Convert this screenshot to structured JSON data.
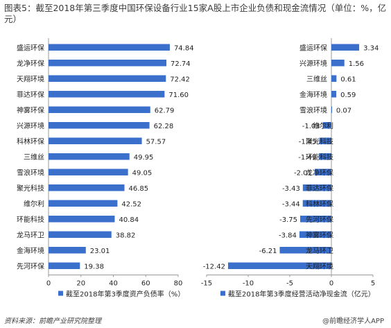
{
  "title": "图表5：截至2018年第三季度中国环保设备行业15家A股上市企业负债和现金流情况（单位：%，亿元）",
  "source": "资料来源：前瞻产业研究院整理",
  "brand": "@前瞻经济学人APP",
  "colors": {
    "bar": "#3a6fcb",
    "axis": "#999999",
    "text": "#222222"
  },
  "chart_data": [
    {
      "type": "bar",
      "orientation": "horizontal",
      "categories": [
        "盛运环保",
        "龙净环保",
        "天翔环境",
        "菲达环保",
        "神雾环保",
        "兴源环境",
        "科林环保",
        "三维丝",
        "雪浪环境",
        "聚光科技",
        "维尔利",
        "环能科技",
        "龙马环卫",
        "金海环境",
        "先河环保"
      ],
      "series": [
        {
          "name": "截至2018年第3季度资产负债率（%）",
          "values": [
            74.84,
            72.74,
            72.42,
            71.6,
            62.79,
            62.28,
            57.57,
            49.95,
            49.05,
            46.85,
            42.52,
            40.84,
            38.82,
            23.01,
            19.38
          ]
        }
      ],
      "data_labels": [
        "74.84",
        "72.74",
        "72.42",
        "71.60",
        "62.79",
        "62.28",
        "57.57",
        "49.95",
        "49.05",
        "46.85",
        "42.52",
        "40.84",
        "38.82",
        "23.01",
        "19.38"
      ],
      "xlim": [
        0,
        80
      ],
      "xticks": [
        0,
        20,
        40,
        60,
        80
      ],
      "legend": "bottom"
    },
    {
      "type": "bar",
      "orientation": "horizontal",
      "categories": [
        "盛运环保",
        "兴源环境",
        "三维丝",
        "金海环境",
        "雪浪环境",
        "维尔利",
        "聚光科技",
        "环能科技",
        "龙净环保",
        "菲达环保",
        "科林环保",
        "先河环保",
        "神雾环保",
        "龙马环卫",
        "天翔环境"
      ],
      "series": [
        {
          "name": "截至2018年第3季度经营活动净现金流（亿元）",
          "values": [
            3.34,
            1.56,
            0.61,
            0.59,
            0.07,
            -1.03,
            -1.45,
            -1.49,
            -2.01,
            -3.43,
            -3.44,
            -3.75,
            -3.84,
            -6.21,
            -12.42
          ]
        }
      ],
      "data_labels": [
        "3.34",
        "1.56",
        "0.61",
        "0.59",
        "0.07",
        "-1.03",
        "-1.45",
        "-1.49",
        "-2.01",
        "-3.43",
        "-3.44",
        "-3.75",
        "-3.84",
        "-6.21",
        "-12.42"
      ],
      "xlim": [
        -15,
        5
      ],
      "xticks": [
        -15,
        -10,
        -5,
        0,
        5
      ],
      "legend": "bottom"
    }
  ]
}
